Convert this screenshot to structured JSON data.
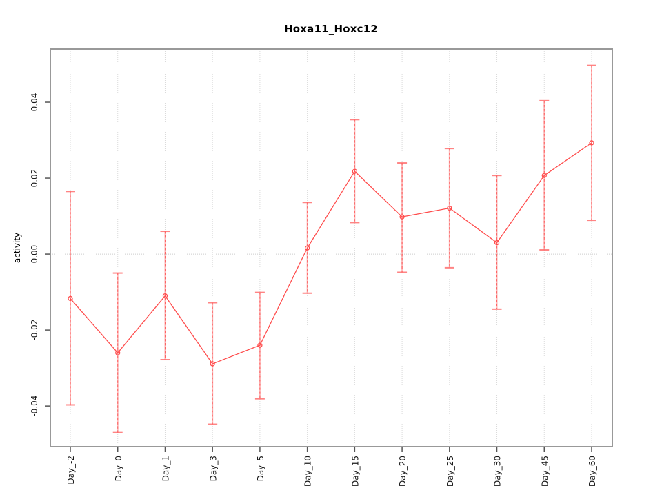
{
  "window": {
    "background": "#ffffff"
  },
  "chart_data": {
    "type": "line",
    "title": "Hoxa11_Hoxc12",
    "ylabel": "activity",
    "xlabel": "",
    "categories": [
      "Day_-2",
      "Day_0",
      "Day_1",
      "Day_3",
      "Day_5",
      "Day_10",
      "Day_15",
      "Day_20",
      "Day_25",
      "Day_30",
      "Day_45",
      "Day_60"
    ],
    "series": [
      {
        "name": "activity",
        "values": [
          -0.0117,
          -0.026,
          -0.011,
          -0.0289,
          -0.024,
          0.0016,
          0.0218,
          0.0098,
          0.0121,
          0.003,
          0.0207,
          0.0293
        ],
        "upper": [
          0.0165,
          -0.005,
          0.006,
          -0.0128,
          -0.0101,
          0.0136,
          0.0354,
          0.024,
          0.0278,
          0.0207,
          0.0404,
          0.0497
        ],
        "lower": [
          -0.0397,
          -0.047,
          -0.0278,
          -0.0448,
          -0.0381,
          -0.0103,
          0.0083,
          -0.0048,
          -0.0036,
          -0.0145,
          0.0011,
          0.0089
        ]
      }
    ],
    "y_ticks": [
      {
        "value": -0.04,
        "label": "-0.04"
      },
      {
        "value": -0.02,
        "label": "-0.02"
      },
      {
        "value": 0.0,
        "label": "0.00"
      },
      {
        "value": 0.02,
        "label": "0.02"
      },
      {
        "value": 0.04,
        "label": "0.04"
      }
    ],
    "ylim": [
      -0.0507,
      0.054
    ],
    "grid": {
      "vertical": "dotted",
      "zero_line": "dotted",
      "horizontal": "zero-only"
    },
    "legend": "none",
    "marker": "open-circle",
    "error_bars": true,
    "colors": {
      "line": "#ff4d4d",
      "error_bar_fill": "#ff6666",
      "error_bar_dash": "#ff5252",
      "grid": "#d9d9d9",
      "zero_line": "#cccccc",
      "border": "#999999",
      "tick": "#555555",
      "text": "#1a1a1a",
      "background": "#ffffff"
    }
  }
}
